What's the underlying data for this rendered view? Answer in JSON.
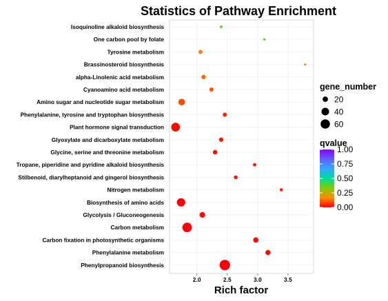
{
  "chart_data": {
    "type": "scatter",
    "title": "Statistics of Pathway Enrichment",
    "xlabel": "Rich factor",
    "ylabel": "",
    "xlim": [
      1.55,
      3.92
    ],
    "xticks": [
      "2.0",
      "2.5",
      "3.0",
      "3.5"
    ],
    "grid": true,
    "categories": [
      "Isoquinoline alkaloid biosynthesis",
      "One carbon pool by folate",
      "Tyrosine metabolism",
      "Brassinosteroid biosynthesis",
      "alpha-Linolenic acid metabolism",
      "Cyanoamino acid metabolism",
      "Amino sugar and nucleotide sugar metabolism",
      "Phenylalanine, tyrosine and tryptophan biosynthesis",
      "Plant hormone signal transduction",
      "Glyoxylate and dicarboxylate metabolism",
      "Glycine, serine and threonine metabolism",
      "Tropane, piperidine and pyridine alkaloid biosynthesis",
      "Stilbenoid, diarylheptanoid and gingerol biosynthesis",
      "Nitrogen metabolism",
      "Biosynthesis of amino acids",
      "Glycolysis / Gluconeogenesis",
      "Carbon metabolism",
      "Carbon fixation in photosynthetic organisms",
      "Phenylalanine metabolism",
      "Phenylpropanoid biosynthesis"
    ],
    "points": [
      {
        "pathway": "Isoquinoline alkaloid biosynthesis",
        "rich_factor": 2.4,
        "gene_number": 5,
        "qvalue": 0.35
      },
      {
        "pathway": "One carbon pool by folate",
        "rich_factor": 3.11,
        "gene_number": 4,
        "qvalue": 0.38
      },
      {
        "pathway": "Tyrosine metabolism",
        "rich_factor": 2.06,
        "gene_number": 11,
        "qvalue": 0.15
      },
      {
        "pathway": "Brassinosteroid biosynthesis",
        "rich_factor": 3.78,
        "gene_number": 3,
        "qvalue": 0.17
      },
      {
        "pathway": "alpha-Linolenic acid metabolism",
        "rich_factor": 2.11,
        "gene_number": 13,
        "qvalue": 0.12
      },
      {
        "pathway": "Cyanoamino acid metabolism",
        "rich_factor": 2.24,
        "gene_number": 12,
        "qvalue": 0.1
      },
      {
        "pathway": "Amino sugar and nucleotide sugar metabolism",
        "rich_factor": 1.75,
        "gene_number": 30,
        "qvalue": 0.09
      },
      {
        "pathway": "Phenylalanine, tyrosine and tryptophan biosynthesis",
        "rich_factor": 2.46,
        "gene_number": 11,
        "qvalue": 0.03
      },
      {
        "pathway": "Plant hormone signal transduction",
        "rich_factor": 1.65,
        "gene_number": 52,
        "qvalue": 0.01
      },
      {
        "pathway": "Glyoxylate and dicarboxylate metabolism",
        "rich_factor": 2.4,
        "gene_number": 13,
        "qvalue": 0.02
      },
      {
        "pathway": "Glycine, serine and threonine metabolism",
        "rich_factor": 2.3,
        "gene_number": 14,
        "qvalue": 0.02
      },
      {
        "pathway": "Tropane, piperidine and pyridine alkaloid biosynthesis",
        "rich_factor": 2.95,
        "gene_number": 8,
        "qvalue": 0.02
      },
      {
        "pathway": "Stilbenoid, diarylheptanoid and gingerol biosynthesis",
        "rich_factor": 2.64,
        "gene_number": 10,
        "qvalue": 0.02
      },
      {
        "pathway": "Nitrogen metabolism",
        "rich_factor": 3.39,
        "gene_number": 7,
        "qvalue": 0.03
      },
      {
        "pathway": "Biosynthesis of amino acids",
        "rich_factor": 1.74,
        "gene_number": 48,
        "qvalue": 0.0
      },
      {
        "pathway": "Glycolysis / Gluconeogenesis",
        "rich_factor": 2.09,
        "gene_number": 22,
        "qvalue": 0.01
      },
      {
        "pathway": "Carbon metabolism",
        "rich_factor": 1.84,
        "gene_number": 62,
        "qvalue": 0.0
      },
      {
        "pathway": "Carbon fixation in photosynthetic organisms",
        "rich_factor": 2.97,
        "gene_number": 19,
        "qvalue": 0.01
      },
      {
        "pathway": "Phenylalanine metabolism",
        "rich_factor": 3.17,
        "gene_number": 18,
        "qvalue": 0.01
      },
      {
        "pathway": "Phenylpropanoid biosynthesis",
        "rich_factor": 2.46,
        "gene_number": 75,
        "qvalue": 0.0
      }
    ],
    "size_legend": {
      "title": "gene_number",
      "values": [
        20,
        40,
        60
      ],
      "labels": [
        "20",
        "40",
        "60"
      ]
    },
    "color_legend": {
      "title": "qvalue",
      "range": [
        0.0,
        1.0
      ],
      "tick_values": [
        1.0,
        0.75,
        0.5,
        0.25,
        0.0
      ],
      "tick_labels": [
        "1.00",
        "0.75",
        "0.50",
        "0.25",
        "0.00"
      ],
      "colors": [
        "#ff0000",
        "#ff8c00",
        "#7fcc00",
        "#00dd99",
        "#2fa8ff",
        "#6060ff",
        "#8800ff"
      ]
    }
  }
}
